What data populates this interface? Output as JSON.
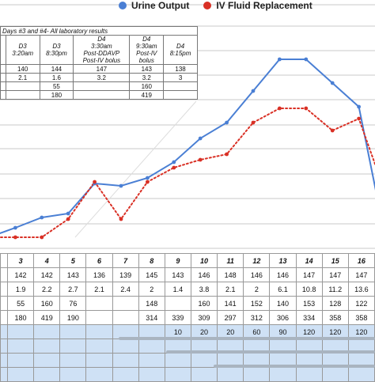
{
  "legend": {
    "urine_label": "Urine Output",
    "iv_label": "IV Fluid Replacement",
    "urine_color": "#4a7fd4",
    "iv_color": "#d93025"
  },
  "lab_table": {
    "caption": "Days #3 and #4- All laboratory results",
    "headers": [
      [
        "D3",
        "3:20am"
      ],
      [
        "D3",
        "8:30pm"
      ],
      [
        "D4",
        "3:30am",
        "Post-DDAVP",
        "Post-IV bolus"
      ],
      [
        "D4",
        "9:30am",
        "Post-IV",
        "bolus"
      ],
      [
        "D4",
        "8:15pm"
      ]
    ],
    "rows": [
      [
        "140",
        "144",
        "147",
        "143",
        "138"
      ],
      [
        "2.1",
        "1.6",
        "3.2",
        "3.2",
        "3"
      ],
      [
        "",
        "55",
        "",
        "160",
        ""
      ],
      [
        "",
        "180",
        "",
        "419",
        ""
      ]
    ]
  },
  "chart_data": {
    "type": "line",
    "x": [
      1,
      2,
      3,
      4,
      5,
      6,
      7,
      8,
      9,
      10,
      11,
      12,
      13,
      14,
      15,
      16,
      17
    ],
    "series": [
      {
        "name": "Urine Output",
        "color": "#4a7fd4",
        "style": "solid",
        "values": [
          0,
          12,
          25,
          30,
          68,
          65,
          75,
          95,
          125,
          145,
          185,
          225,
          225,
          195,
          165,
          0,
          14
        ]
      },
      {
        "name": "IV Fluid Replacement",
        "color": "#d93025",
        "style": "dotted",
        "values": [
          0,
          0,
          0,
          23,
          70,
          23,
          70,
          88,
          98,
          105,
          145,
          163,
          163,
          135,
          150,
          56,
          23
        ]
      }
    ],
    "ylim": [
      0,
      240
    ],
    "grid": true,
    "legend": "top"
  },
  "bottom_table": {
    "days": [
      "3",
      "4",
      "5",
      "6",
      "7",
      "8",
      "9",
      "10",
      "11",
      "12",
      "13",
      "14",
      "15",
      "16"
    ],
    "rows": [
      [
        "142",
        "142",
        "143",
        "136",
        "139",
        "145",
        "143",
        "146",
        "148",
        "146",
        "146",
        "147",
        "147",
        "147"
      ],
      [
        "1.9",
        "2.2",
        "2.7",
        "2.1",
        "2.4",
        "2",
        "1.4",
        "3.8",
        "2.1",
        "2",
        "6.1",
        "10.8",
        "11.2",
        "13.6"
      ],
      [
        "55",
        "160",
        "76",
        "",
        "",
        "148",
        "",
        "160",
        "141",
        "152",
        "140",
        "153",
        "128",
        "122"
      ],
      [
        "180",
        "419",
        "190",
        "",
        "",
        "314",
        "339",
        "309",
        "297",
        "312",
        "306",
        "334",
        "358",
        "358"
      ]
    ],
    "blue_row": [
      "",
      "",
      "",
      "",
      "",
      "",
      "10",
      "20",
      "20",
      "60",
      "90",
      "120",
      "120",
      "120"
    ]
  }
}
